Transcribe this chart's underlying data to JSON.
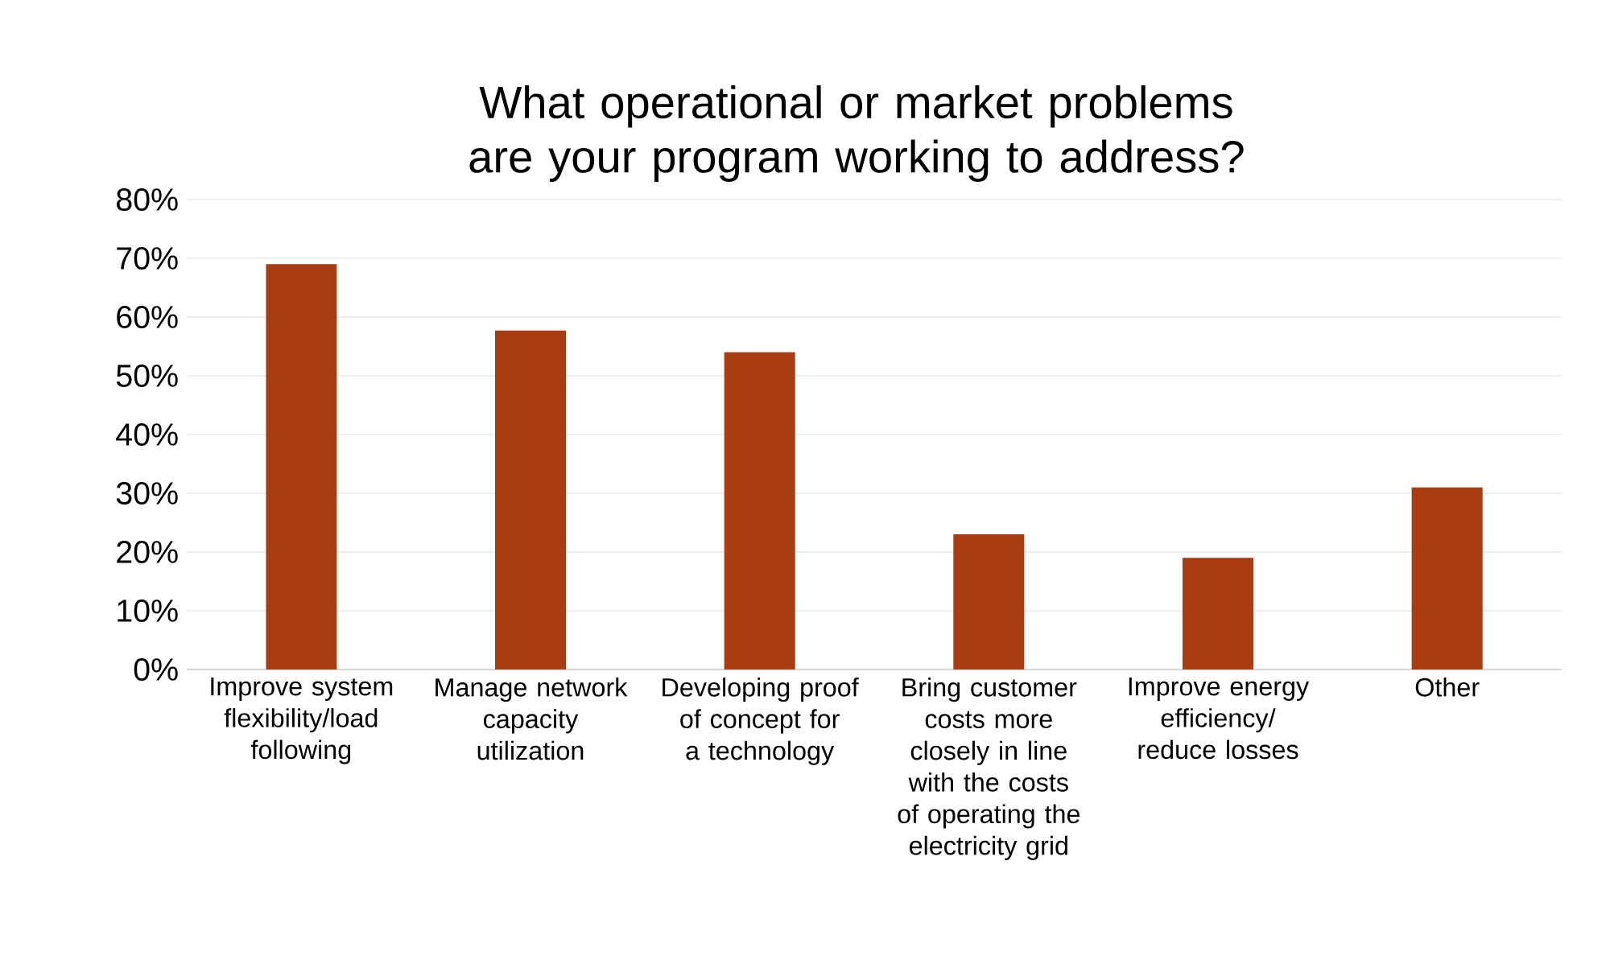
{
  "chart_data": {
    "type": "bar",
    "title": "What operational or market problems are your program working to address?",
    "categories": [
      "Improve system flexibility/load following",
      "Manage network capacity utilization",
      "Developing proof of concept for a technology",
      "Bring customer costs more closely in line with the costs of operating the electricity grid",
      "Improve energy efficiency/ reduce losses",
      "Other"
    ],
    "values": [
      69,
      57.7,
      54,
      23,
      19,
      31
    ],
    "color": "#a83c12",
    "ylim": [
      0,
      80
    ],
    "yticks": [
      {
        "value": 0,
        "label": "0%"
      },
      {
        "value": 10,
        "label": "10%"
      },
      {
        "value": 20,
        "label": "20%"
      },
      {
        "value": 30,
        "label": "30%"
      },
      {
        "value": 40,
        "label": "40%"
      },
      {
        "value": 50,
        "label": "50%"
      },
      {
        "value": 60,
        "label": "60%"
      },
      {
        "value": 70,
        "label": "70%"
      },
      {
        "value": 80,
        "label": "80%"
      }
    ],
    "grid": "y"
  }
}
